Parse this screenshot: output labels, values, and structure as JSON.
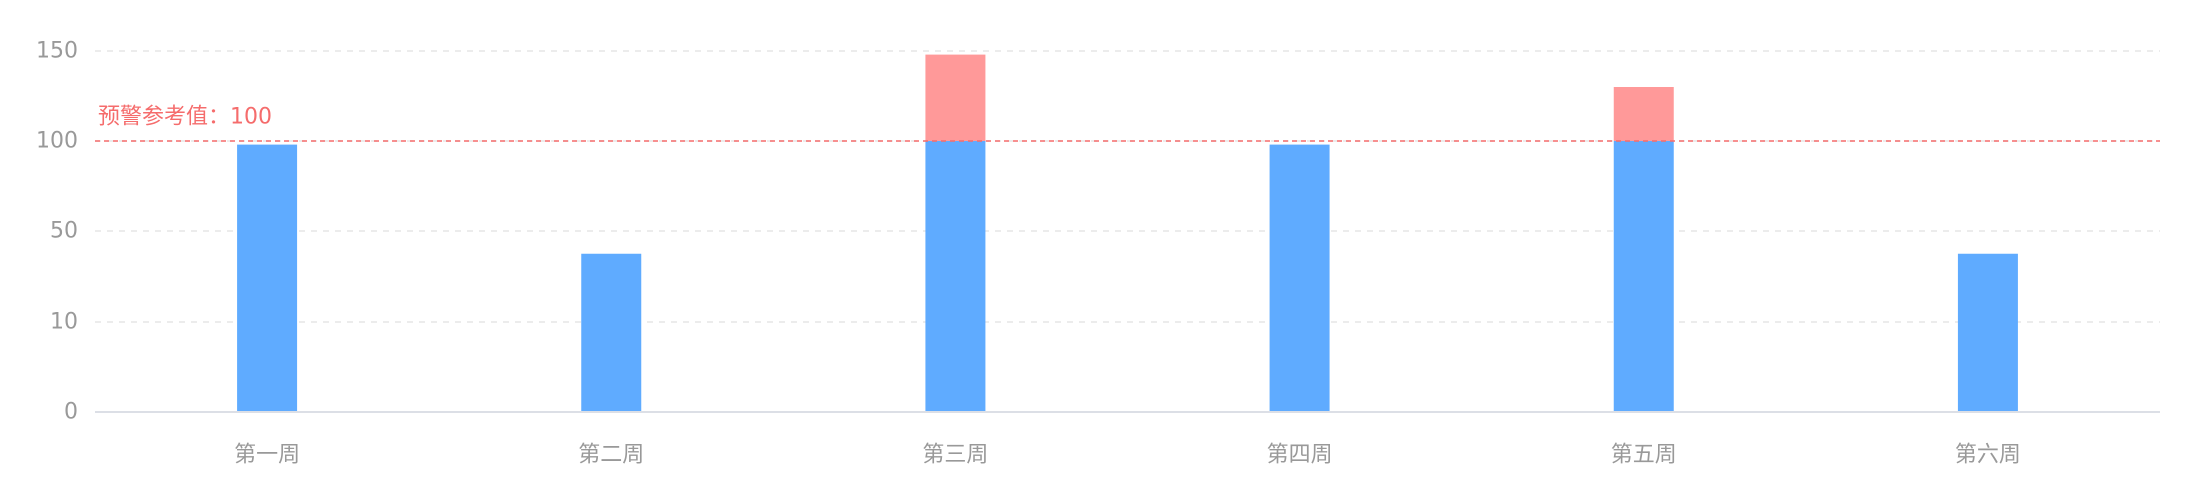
{
  "chart_data": {
    "type": "bar",
    "stacked": true,
    "categories": [
      "第一周",
      "第二周",
      "第三周",
      "第四周",
      "第五周",
      "第六周"
    ],
    "series": [
      {
        "values": [
          98,
          40,
          100,
          98,
          100,
          40
        ],
        "color": "#5fabff"
      },
      {
        "values": [
          0,
          0,
          48,
          0,
          30,
          0
        ],
        "color": "#ff9999"
      }
    ],
    "y_ticks": [
      0,
      10,
      50,
      100,
      150
    ],
    "threshold": {
      "value": 100,
      "label": "预警参考值：100",
      "color": "#f56c6c"
    },
    "grid": true,
    "axis_color": "#dcdfe6",
    "grid_color": "#e6e6e6"
  }
}
